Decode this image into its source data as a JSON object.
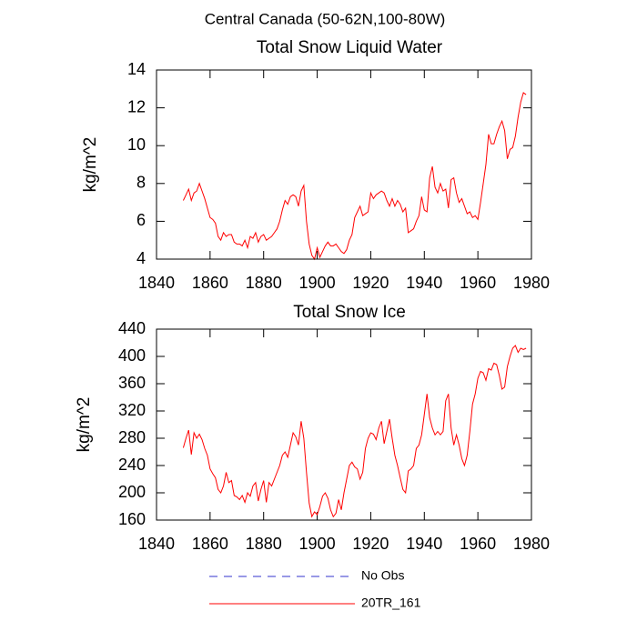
{
  "title": "Central Canada (50-62N,100-80W)",
  "legend": [
    {
      "name": "No Obs",
      "color": "#3333cc",
      "dash": true
    }
  ],
  "chart_data": [
    {
      "type": "line",
      "title": "Total Snow Liquid Water",
      "ylabel": "kg/m^2",
      "x": [
        1850,
        1851,
        1852,
        1853,
        1854,
        1855,
        1856,
        1857,
        1858,
        1859,
        1860,
        1861,
        1862,
        1863,
        1864,
        1865,
        1866,
        1867,
        1868,
        1869,
        1870,
        1871,
        1872,
        1873,
        1874,
        1875,
        1876,
        1877,
        1878,
        1879,
        1880,
        1881,
        1882,
        1883,
        1884,
        1885,
        1886,
        1887,
        1888,
        1889,
        1890,
        1891,
        1892,
        1893,
        1894,
        1895,
        1896,
        1897,
        1898,
        1899,
        1900,
        1901,
        1902,
        1903,
        1904,
        1905,
        1906,
        1907,
        1908,
        1909,
        1910,
        1911,
        1912,
        1913,
        1914,
        1915,
        1916,
        1917,
        1918,
        1919,
        1920,
        1921,
        1922,
        1923,
        1924,
        1925,
        1926,
        1927,
        1928,
        1929,
        1930,
        1931,
        1932,
        1933,
        1934,
        1935,
        1936,
        1937,
        1938,
        1939,
        1940,
        1941,
        1942,
        1943,
        1944,
        1945,
        1946,
        1947,
        1948,
        1949,
        1950,
        1951,
        1952,
        1953,
        1954,
        1955,
        1956,
        1957,
        1958,
        1959,
        1960,
        1961,
        1962,
        1963,
        1964,
        1965,
        1966,
        1967,
        1968,
        1969,
        1970,
        1971,
        1972,
        1973,
        1974,
        1975,
        1976,
        1977,
        1978
      ],
      "series": [
        {
          "name": "20TR_161",
          "color": "#ff0000",
          "values": [
            7.1,
            7.4,
            7.7,
            7.1,
            7.5,
            7.6,
            8.0,
            7.6,
            7.2,
            6.7,
            6.2,
            6.1,
            5.9,
            5.2,
            5.0,
            5.4,
            5.2,
            5.3,
            5.3,
            4.9,
            4.8,
            4.8,
            4.7,
            5.0,
            4.6,
            5.2,
            5.1,
            5.4,
            4.9,
            5.2,
            5.3,
            5.0,
            5.1,
            5.2,
            5.4,
            5.6,
            6.0,
            6.6,
            7.1,
            6.9,
            7.3,
            7.4,
            7.3,
            6.8,
            7.6,
            7.9,
            6.0,
            4.8,
            4.2,
            4.0,
            4.6,
            4.1,
            4.4,
            4.7,
            4.9,
            4.7,
            4.7,
            4.8,
            4.6,
            4.4,
            4.3,
            4.5,
            5.0,
            5.3,
            6.2,
            6.5,
            6.8,
            6.3,
            6.4,
            6.5,
            7.5,
            7.2,
            7.4,
            7.5,
            7.6,
            7.5,
            7.1,
            6.8,
            7.2,
            6.8,
            7.1,
            6.9,
            6.5,
            6.7,
            5.4,
            5.5,
            5.6,
            6.0,
            6.3,
            7.3,
            6.6,
            6.5,
            8.3,
            8.9,
            7.8,
            7.5,
            8.0,
            7.6,
            7.7,
            6.7,
            8.2,
            8.3,
            7.5,
            7.0,
            7.2,
            6.8,
            6.4,
            6.5,
            6.2,
            6.3,
            6.1,
            7.0,
            8.0,
            9.0,
            10.6,
            10.1,
            10.1,
            10.6,
            11.0,
            11.3,
            10.8,
            9.3,
            9.8,
            9.9,
            10.5,
            11.5,
            12.3,
            12.8,
            12.7
          ]
        }
      ],
      "xlim": [
        1840,
        1980
      ],
      "xticks": [
        1840,
        1860,
        1880,
        1900,
        1920,
        1940,
        1960,
        1980
      ],
      "ylim": [
        4,
        14
      ],
      "yticks": [
        4,
        6,
        8,
        10,
        12,
        14
      ]
    },
    {
      "type": "line",
      "title": "Total Snow Ice",
      "ylabel": "kg/m^2",
      "x": [
        1850,
        1851,
        1852,
        1853,
        1854,
        1855,
        1856,
        1857,
        1858,
        1859,
        1860,
        1861,
        1862,
        1863,
        1864,
        1865,
        1866,
        1867,
        1868,
        1869,
        1870,
        1871,
        1872,
        1873,
        1874,
        1875,
        1876,
        1877,
        1878,
        1879,
        1880,
        1881,
        1882,
        1883,
        1884,
        1885,
        1886,
        1887,
        1888,
        1889,
        1890,
        1891,
        1892,
        1893,
        1894,
        1895,
        1896,
        1897,
        1898,
        1899,
        1900,
        1901,
        1902,
        1903,
        1904,
        1905,
        1906,
        1907,
        1908,
        1909,
        1910,
        1911,
        1912,
        1913,
        1914,
        1915,
        1916,
        1917,
        1918,
        1919,
        1920,
        1921,
        1922,
        1923,
        1924,
        1925,
        1926,
        1927,
        1928,
        1929,
        1930,
        1931,
        1932,
        1933,
        1934,
        1935,
        1936,
        1937,
        1938,
        1939,
        1940,
        1941,
        1942,
        1943,
        1944,
        1945,
        1946,
        1947,
        1948,
        1949,
        1950,
        1951,
        1952,
        1953,
        1954,
        1955,
        1956,
        1957,
        1958,
        1959,
        1960,
        1961,
        1962,
        1963,
        1964,
        1965,
        1966,
        1967,
        1968,
        1969,
        1970,
        1971,
        1972,
        1973,
        1974,
        1975,
        1976,
        1977,
        1978
      ],
      "series": [
        {
          "name": "20TR_161",
          "color": "#ff0000",
          "values": [
            266,
            280,
            292,
            256,
            288,
            280,
            286,
            278,
            265,
            255,
            235,
            228,
            222,
            205,
            200,
            210,
            230,
            215,
            218,
            196,
            194,
            190,
            196,
            186,
            200,
            195,
            210,
            215,
            188,
            205,
            218,
            186,
            215,
            210,
            220,
            230,
            240,
            255,
            260,
            252,
            270,
            288,
            282,
            270,
            305,
            280,
            230,
            185,
            165,
            172,
            168,
            180,
            195,
            200,
            192,
            175,
            165,
            170,
            190,
            175,
            200,
            220,
            240,
            245,
            238,
            235,
            220,
            230,
            265,
            280,
            288,
            286,
            278,
            295,
            305,
            272,
            290,
            308,
            280,
            255,
            240,
            222,
            205,
            200,
            232,
            235,
            240,
            265,
            270,
            285,
            315,
            345,
            310,
            295,
            285,
            290,
            285,
            290,
            335,
            345,
            295,
            270,
            285,
            270,
            250,
            240,
            255,
            290,
            330,
            345,
            368,
            378,
            376,
            365,
            382,
            380,
            390,
            388,
            372,
            352,
            355,
            385,
            400,
            412,
            416,
            406,
            412,
            410,
            412
          ]
        }
      ],
      "xlim": [
        1840,
        1980
      ],
      "xticks": [
        1840,
        1860,
        1880,
        1900,
        1920,
        1940,
        1960,
        1980
      ],
      "ylim": [
        160,
        440
      ],
      "yticks": [
        160,
        200,
        240,
        280,
        320,
        360,
        400,
        440
      ]
    }
  ]
}
